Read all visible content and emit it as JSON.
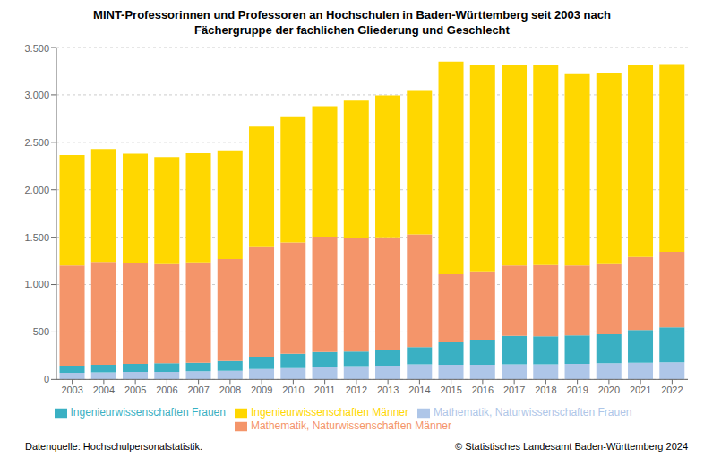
{
  "chart_data": {
    "type": "bar",
    "title": "MINT-Professorinnen und Professoren an Hochschulen in Baden-Württemberg seit 2003 nach\nFächergruppe der fachlichen Gliederung und Geschlecht",
    "categories": [
      "2003",
      "2004",
      "2005",
      "2006",
      "2007",
      "2008",
      "2009",
      "2010",
      "2011",
      "2012",
      "2013",
      "2014",
      "2015",
      "2016",
      "2017",
      "2018",
      "2019",
      "2020",
      "2021",
      "2022"
    ],
    "series": [
      {
        "name": "Mathematik, Naturwissenschaften Frauen",
        "color": "#aec6e8",
        "values": [
          70,
          75,
          80,
          80,
          85,
          90,
          110,
          120,
          135,
          140,
          145,
          160,
          155,
          155,
          160,
          160,
          165,
          170,
          175,
          180
        ]
      },
      {
        "name": "Ingenieurwissenschaften Frauen",
        "color": "#3ab0c3",
        "values": [
          75,
          80,
          85,
          90,
          90,
          105,
          130,
          150,
          155,
          155,
          165,
          180,
          235,
          265,
          300,
          295,
          300,
          305,
          345,
          370
        ]
      },
      {
        "name": "Mathematik, Naturwissenschaften Männer",
        "color": "#f4956a",
        "values": [
          1055,
          1085,
          1060,
          1045,
          1060,
          1075,
          1155,
          1175,
          1215,
          1195,
          1190,
          1190,
          720,
          720,
          740,
          750,
          735,
          740,
          770,
          795
        ]
      },
      {
        "name": "Ingenieurwissenschaften Männer",
        "color": "#ffd700",
        "values": [
          1165,
          1190,
          1155,
          1130,
          1150,
          1145,
          1270,
          1330,
          1375,
          1450,
          1495,
          1520,
          2240,
          2175,
          2120,
          2115,
          2020,
          2015,
          2030,
          1980
        ]
      }
    ],
    "stacked": true,
    "ylim": [
      0,
      3500
    ],
    "yticks": [
      0,
      500,
      {
        "value": 1000,
        "label": "1.000"
      },
      {
        "value": 1500,
        "label": "1.500"
      },
      {
        "value": 2000,
        "label": "2.000"
      },
      {
        "value": 2500,
        "label": "2.500"
      },
      {
        "value": 3000,
        "label": "3.000"
      },
      {
        "value": 3500,
        "label": "3.500"
      }
    ],
    "grid": true,
    "legend": "bottom",
    "annotations": [
      "Datenquelle: Hochschulpersonalstatistik.",
      "© Statistisches Landesamt Baden-Württemberg 2024"
    ]
  }
}
